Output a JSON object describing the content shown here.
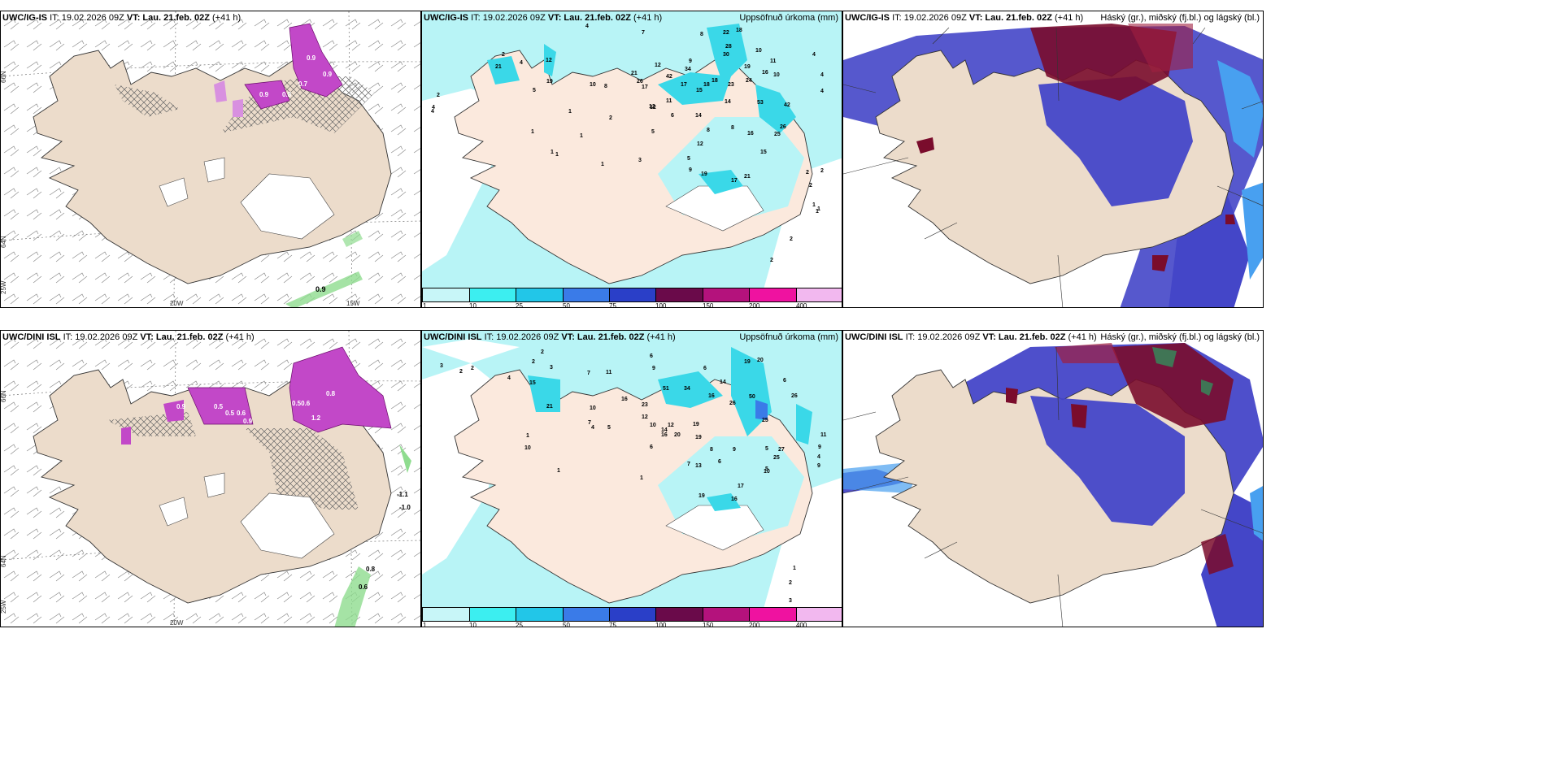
{
  "rows": [
    {
      "model": "UWC/IG-IS",
      "it": "IT: 19.02.2026 09Z",
      "vt": "VT: Lau. 21.feb. 02Z",
      "lead": "(+41 h)",
      "cloud_label": "Háský (gr.), miðský (fj.bl.) og lágský (bl.)",
      "precip_label": "Uppsöfnuð úrkoma (mm)",
      "left_values": [
        "0.9",
        "0.7",
        "0.9",
        "0.8",
        "0.9",
        "0.9"
      ],
      "left_axis": {
        "lon1": "20W",
        "lon2": "15W",
        "lat1": "66N",
        "lat2": "64N",
        "lat3": "25W"
      },
      "precip_numbers": [
        "4",
        "7",
        "8",
        "22",
        "18",
        "10",
        "12",
        "9",
        "4",
        "4",
        "28",
        "30",
        "19",
        "10",
        "2",
        "4",
        "2",
        "21",
        "12",
        "26",
        "42",
        "34",
        "10",
        "11",
        "4",
        "4",
        "21",
        "17",
        "17",
        "18",
        "18",
        "23",
        "24",
        "16",
        "5",
        "8",
        "12",
        "15",
        "19",
        "42",
        "14",
        "53",
        "26",
        "25",
        "4",
        "1",
        "2",
        "1",
        "1",
        "12",
        "11",
        "6",
        "14",
        "8",
        "8",
        "16",
        "12",
        "5",
        "15",
        "1",
        "1",
        "1",
        "3",
        "5",
        "9",
        "19",
        "21",
        "17",
        "2",
        "2",
        "2",
        "1",
        "2",
        "2",
        "1",
        "1"
      ],
      "right_axis": {
        "lat1": "66N",
        "lat2": "64N"
      }
    },
    {
      "model": "UWC/DINI ISL",
      "it": "IT: 19.02.2026 09Z",
      "vt": "VT: Lau. 21.feb. 02Z",
      "lead": "(+41 h)",
      "cloud_label": "Háský (gr.), miðský (fj.bl.) og lágský (bl.)",
      "precip_label": "Uppsöfnuð úrkoma (mm)",
      "left_values": [
        "0.9",
        "0.5",
        "0.5",
        "0.6",
        "0.9",
        "0.50.6",
        "1.2",
        "0.8",
        "-1.1",
        "-1.0",
        "0.8",
        "0.6"
      ],
      "left_axis": {
        "lon1": "20W",
        "lon2": "15W",
        "lat1": "66N",
        "lat2": "64N",
        "lat3": "25W"
      },
      "precip_numbers": [
        "2",
        "2",
        "3",
        "2",
        "2",
        "3",
        "4",
        "15",
        "7",
        "11",
        "6",
        "9",
        "19",
        "20",
        "6",
        "6",
        "14",
        "21",
        "10",
        "16",
        "23",
        "51",
        "34",
        "16",
        "26",
        "50",
        "26",
        "7",
        "5",
        "12",
        "10",
        "12",
        "19",
        "6",
        "25",
        "16",
        "20",
        "10",
        "4",
        "14",
        "19",
        "8",
        "9",
        "5",
        "27",
        "11",
        "1",
        "1",
        "7",
        "13",
        "6",
        "25",
        "9",
        "4",
        "5",
        "10",
        "9",
        "1",
        "19",
        "16",
        "17",
        "1",
        "2",
        "3"
      ],
      "right_axis": {
        "lat1": "66N",
        "lat2": "64N"
      }
    }
  ],
  "colorbar": {
    "ticks": [
      "1",
      "10",
      "25",
      "50",
      "75",
      "100",
      "150",
      "200",
      "400"
    ],
    "colors": [
      "#c8f6f8",
      "#3ceef0",
      "#22c6e8",
      "#3a7be8",
      "#2a3fc8",
      "#6a0a4a",
      "#b4127c",
      "#ef12a0",
      "#f2b8ef"
    ]
  },
  "colors": {
    "land": "#ecdccb",
    "land_precip": "#fbe9dd",
    "sea_precip": "#b8f4f6",
    "cyan": "#3ad8e8",
    "magenta": "#c248c8",
    "cloud_high": "#7a0c2c",
    "cloud_mid": "#4446c8",
    "cloud_low": "#48a0f0"
  }
}
